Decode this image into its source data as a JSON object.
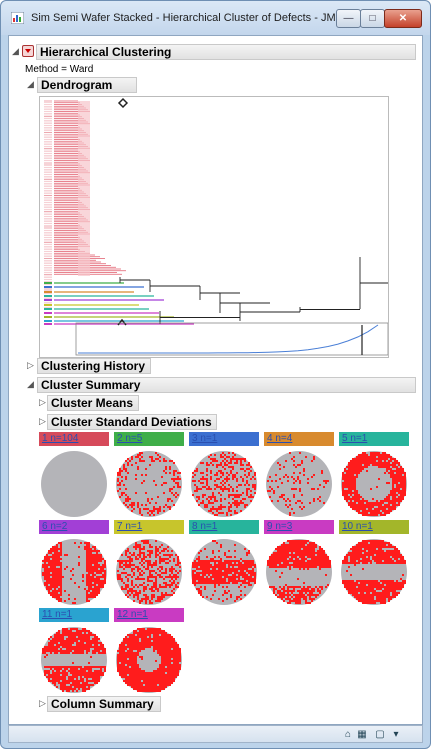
{
  "window": {
    "title": "Sim Semi Wafer Stacked - Hierarchical Cluster of Defects - JMP Pro",
    "controls": {
      "minimize": "—",
      "maximize": "□",
      "close": "✕"
    }
  },
  "report": {
    "main_title": "Hierarchical Clustering",
    "method_label": "Method =",
    "method_value": "Ward",
    "dendrogram_title": "Dendrogram",
    "clustering_history_title": "Clustering History",
    "cluster_summary_title": "Cluster Summary",
    "cluster_means_title": "Cluster Means",
    "cluster_std_title": "Cluster Standard Deviations",
    "column_summary_title": "Column Summary"
  },
  "clusters": [
    {
      "label": "1  n=104",
      "color": "#d64a5a",
      "pattern": "clean",
      "density": 0.0
    },
    {
      "label": "2  n=5",
      "color": "#3fae49",
      "pattern": "edge",
      "density": 0.35
    },
    {
      "label": "3  n=1",
      "color": "#3b6fd0",
      "pattern": "random",
      "density": 0.35
    },
    {
      "label": "4  n=4",
      "color": "#d88a2e",
      "pattern": "random",
      "density": 0.12
    },
    {
      "label": "5  n=1",
      "color": "#27b49c",
      "pattern": "ring",
      "density": 0.9
    },
    {
      "label": "6  n=2",
      "color": "#a23fd6",
      "pattern": "sides",
      "density": 0.85
    },
    {
      "label": "7  n=1",
      "color": "#c7c52c",
      "pattern": "random",
      "density": 0.45
    },
    {
      "label": "8  n=1",
      "color": "#27b49c",
      "pattern": "band",
      "density": 0.85
    },
    {
      "label": "9  n=3",
      "color": "#c93bc2",
      "pattern": "topband",
      "density": 0.9
    },
    {
      "label": "10  n=1",
      "color": "#a3b62a",
      "pattern": "band2",
      "density": 0.9
    },
    {
      "label": "11  n=1",
      "color": "#2aa3d0",
      "pattern": "band3",
      "density": 0.9
    },
    {
      "label": "12  n=1",
      "color": "#c93bc2",
      "pattern": "donut",
      "density": 0.95
    }
  ],
  "colors": {
    "defect": "#ff1c1c",
    "wafer": "#b4b4b8",
    "dendro_red": "#e05a6a",
    "dendro_line": "#222222"
  },
  "statusbar": {
    "icons": [
      "home-icon",
      "grid-icon",
      "panel-icon",
      "dropdown-icon"
    ]
  }
}
